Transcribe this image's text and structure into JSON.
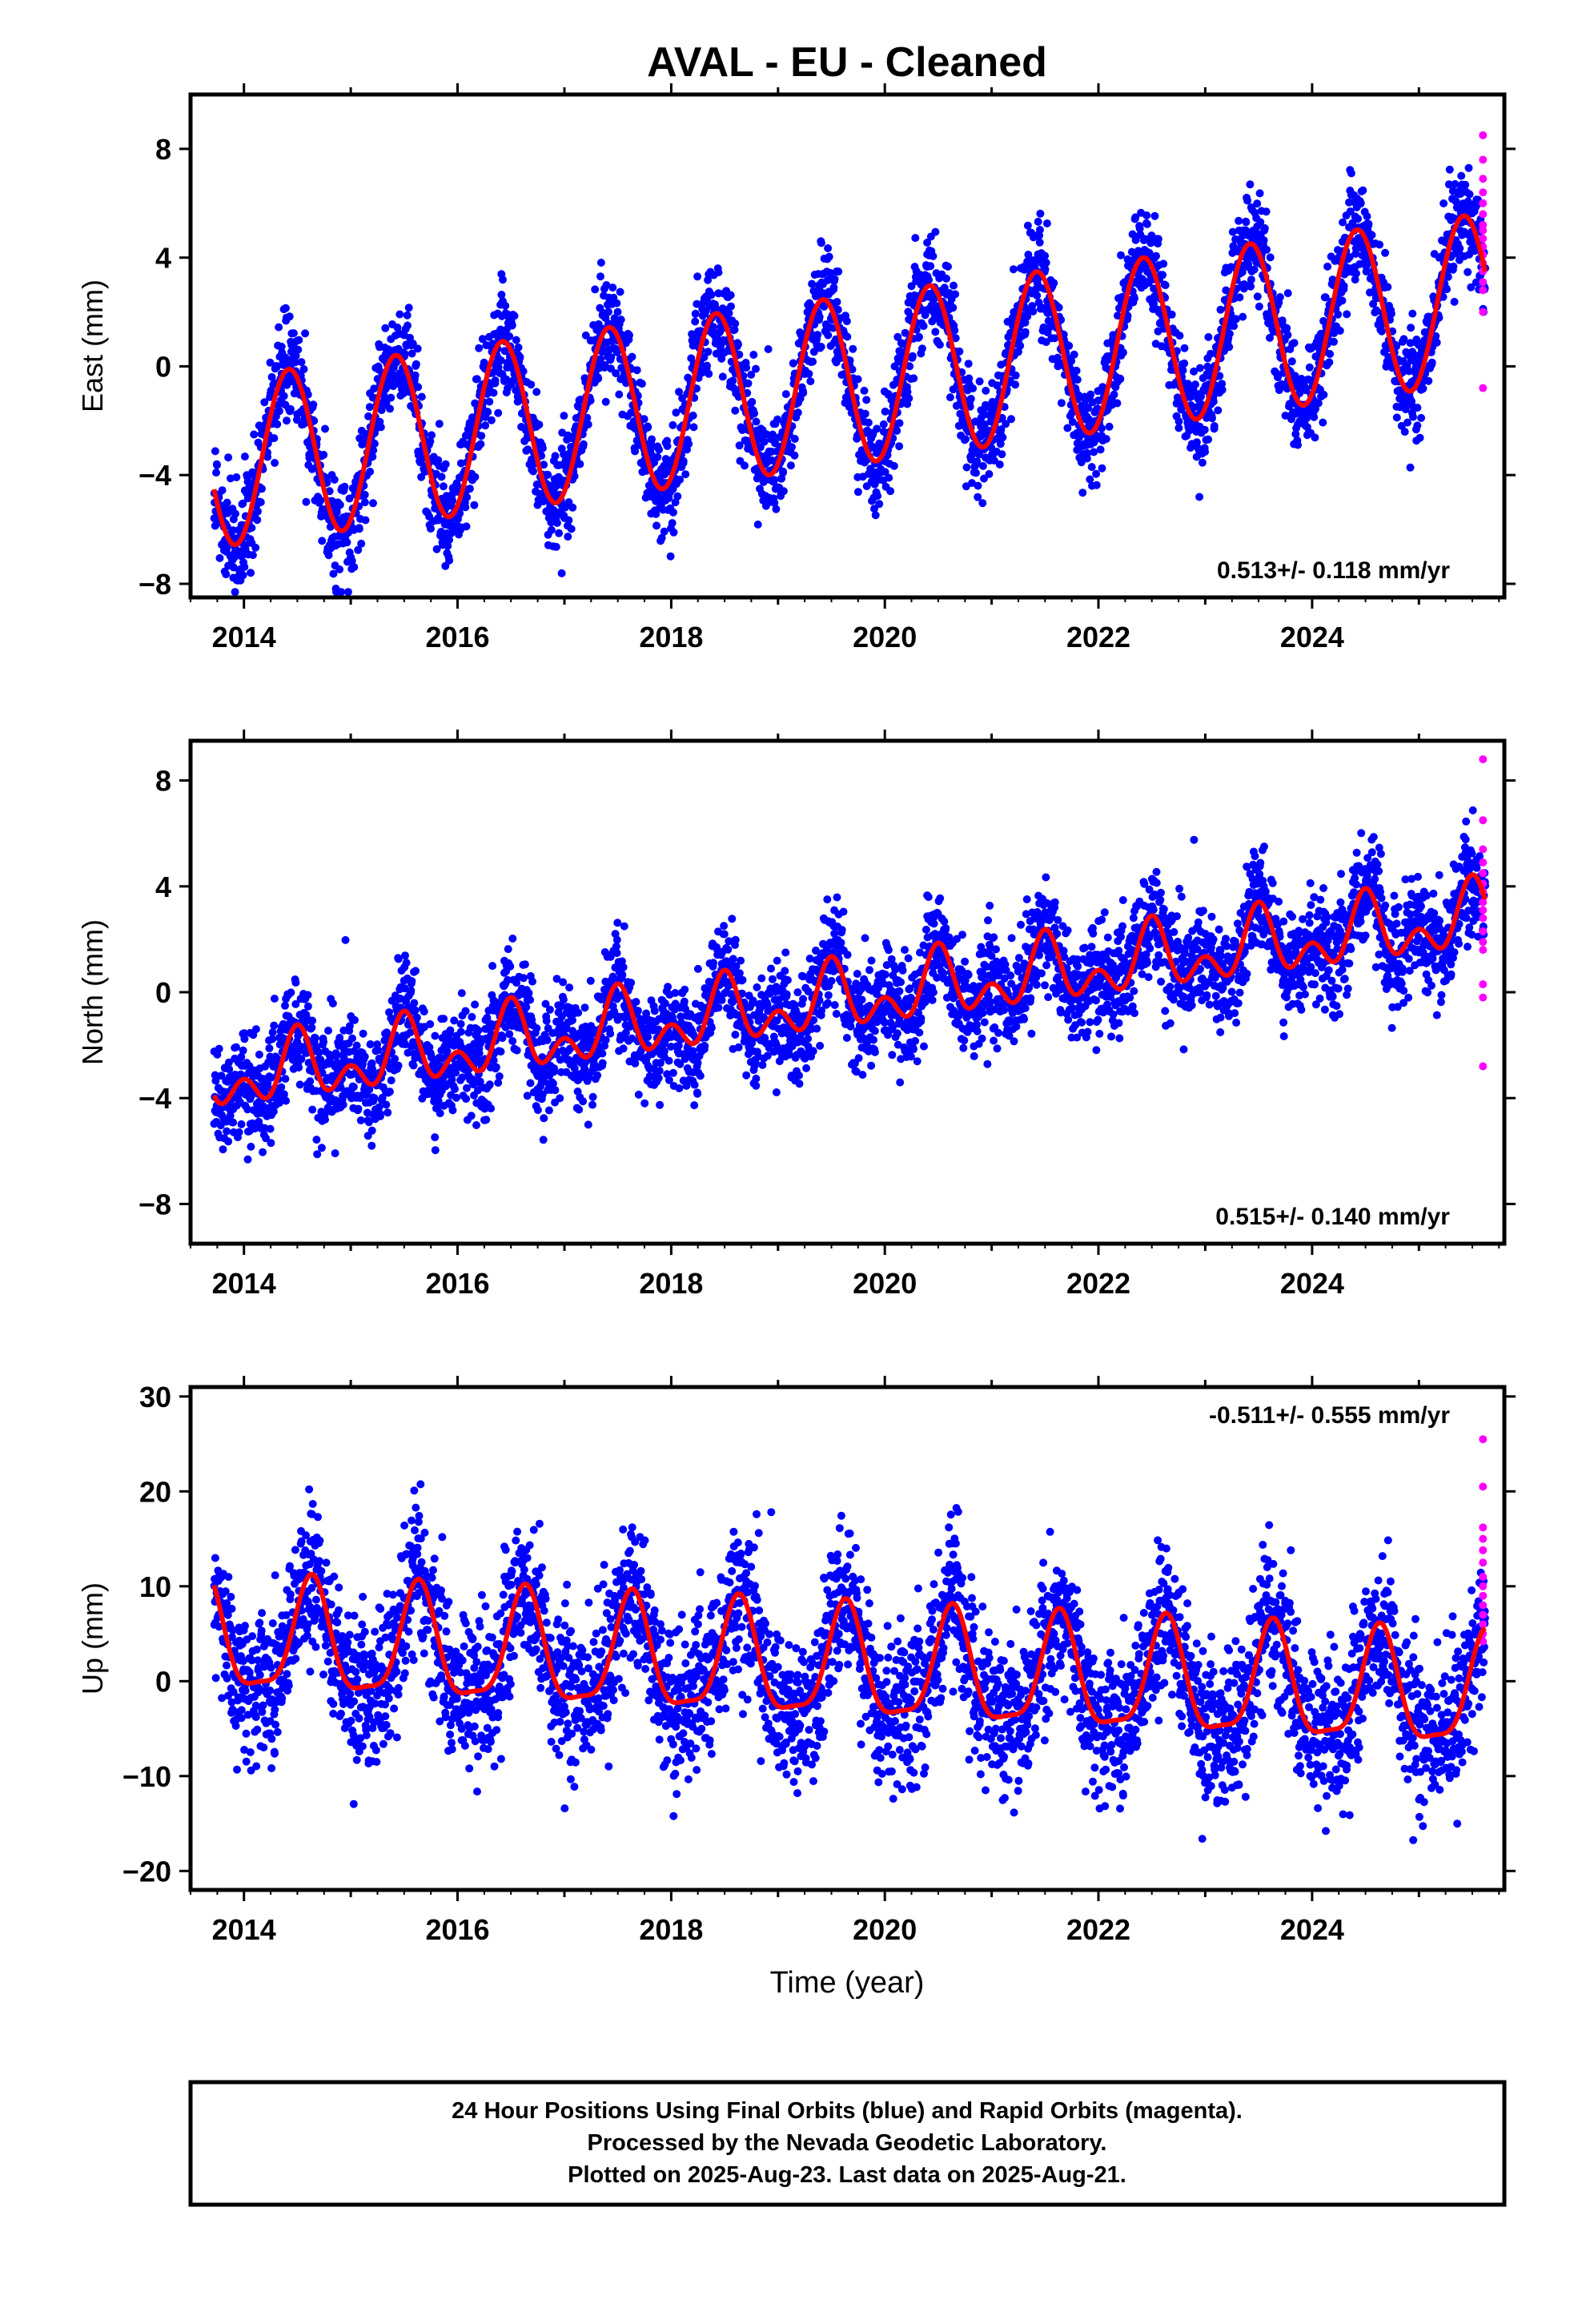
{
  "title": "AVAL  - EU - Cleaned",
  "x_axis_label": "Time (year)",
  "footer": {
    "line1": "24 Hour Positions Using Final Orbits (blue) and Rapid Orbits (magenta).",
    "line2": "Processed by the Nevada Geodetic Laboratory.",
    "line3": "Plotted on 2025-Aug-23. Last data on 2025-Aug-21."
  },
  "colors": {
    "final_orbits": "#0000ff",
    "rapid_orbits": "#ff00ff",
    "model_fit": "#ff0000"
  },
  "chart_data": [
    {
      "type": "scatter",
      "ylabel": "East (mm)",
      "xlim": [
        2013.5,
        2025.8
      ],
      "ylim": [
        -8.5,
        10.0
      ],
      "xticks": [
        2014,
        2016,
        2018,
        2020,
        2022,
        2024
      ],
      "yticks": [
        -8,
        -4,
        0,
        4,
        8
      ],
      "rate_text": "0.513+/- 0.118 mm/yr",
      "rate_position": "bottom-right",
      "model": {
        "start": 2013.72,
        "end": 2025.62,
        "intercept_at_2019_5": -0.6,
        "slope_mm_per_yr": 0.513,
        "annual_amplitude": 3.1,
        "annual_peak_phase": 0.42,
        "semiannual_amplitude": 0.0,
        "semiannual_peak_phase": 0.0
      },
      "final_scatter_sd": 0.95,
      "final_points_count": 3900,
      "rapid_x": 2025.6,
      "rapid_values": [
        8.5,
        7.6,
        6.9,
        6.4,
        6.0,
        5.6,
        5.2,
        5.0,
        4.7,
        4.4,
        4.1,
        3.8,
        3.5,
        3.1,
        2.8,
        2.0,
        -0.8
      ]
    },
    {
      "type": "scatter",
      "ylabel": "North (mm)",
      "xlim": [
        2013.5,
        2025.8
      ],
      "ylim": [
        -9.5,
        9.5
      ],
      "xticks": [
        2014,
        2016,
        2018,
        2020,
        2022,
        2024
      ],
      "yticks": [
        -8,
        -4,
        0,
        4,
        8
      ],
      "rate_text": "0.515+/- 0.140 mm/yr",
      "rate_position": "bottom-right",
      "model": {
        "start": 2013.72,
        "end": 2025.62,
        "intercept_at_2019_5": -0.35,
        "slope_mm_per_yr": 0.515,
        "annual_amplitude": 0.9,
        "annual_peak_phase": 0.5,
        "semiannual_amplitude": 0.8,
        "semiannual_peak_phase": 0.0
      },
      "final_scatter_sd": 1.0,
      "final_points_count": 3900,
      "rapid_x": 2025.6,
      "rapid_values": [
        8.8,
        6.5,
        5.4,
        4.9,
        4.5,
        4.1,
        3.8,
        3.4,
        3.1,
        2.8,
        2.3,
        1.9,
        1.6,
        0.3,
        -0.2,
        -2.8
      ]
    },
    {
      "type": "scatter",
      "ylabel": "Up (mm)",
      "xlim": [
        2013.5,
        2025.8
      ],
      "ylim": [
        -22,
        31
      ],
      "xticks": [
        2014,
        2016,
        2018,
        2020,
        2022,
        2024
      ],
      "yticks": [
        -20,
        -10,
        0,
        10,
        20,
        30
      ],
      "rate_text": "-0.511+/- 0.555 mm/yr",
      "rate_position": "top-right",
      "model": {
        "start": 2013.72,
        "end": 2025.62,
        "intercept_at_2019_5": 1.4,
        "slope_mm_per_yr": -0.511,
        "annual_amplitude": 5.8,
        "annual_peak_phase": 0.63,
        "semiannual_amplitude": 1.6,
        "semiannual_peak_phase": 0.14
      },
      "final_scatter_sd": 4.0,
      "final_points_count": 3900,
      "rapid_x": 2025.6,
      "rapid_values": [
        25.5,
        20.5,
        16.2,
        15.0,
        13.8,
        12.5,
        11.0,
        10.0,
        9.0,
        8.0,
        7.0,
        6.0,
        5.0,
        4.2
      ]
    }
  ]
}
